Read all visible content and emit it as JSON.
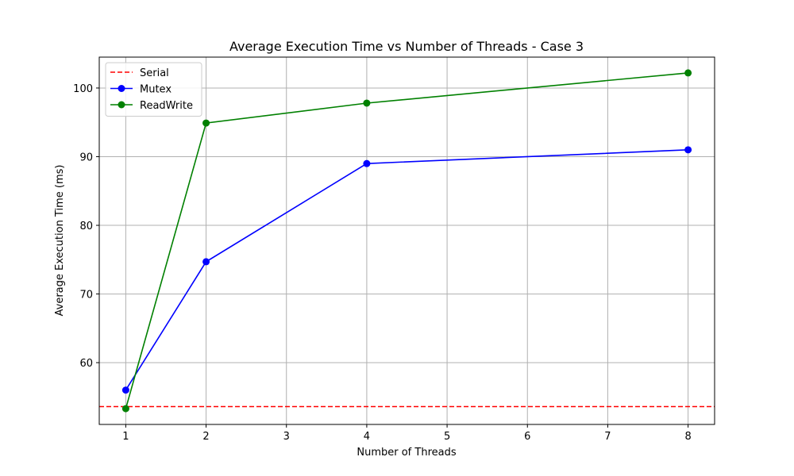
{
  "chart_data": {
    "type": "line",
    "title": "Average Execution Time vs Number of Threads - Case 3",
    "xlabel": "Number of Threads",
    "ylabel": "Average Execution Time (ms)",
    "xlim": [
      0.67,
      8.33
    ],
    "ylim": [
      51,
      104.5
    ],
    "xticks": [
      1,
      2,
      3,
      4,
      5,
      6,
      7,
      8
    ],
    "yticks": [
      60,
      70,
      80,
      90,
      100
    ],
    "grid": true,
    "legend_position": "top-left",
    "reference_lines": [
      {
        "name": "Serial",
        "y": 53.6,
        "color": "#ff0000",
        "style": "dashed"
      }
    ],
    "series": [
      {
        "name": "Mutex",
        "color": "#0000ff",
        "marker": "circle",
        "x": [
          1,
          2,
          4,
          8
        ],
        "y": [
          56.0,
          74.7,
          89.0,
          91.0
        ]
      },
      {
        "name": "ReadWrite",
        "color": "#008000",
        "marker": "circle",
        "x": [
          1,
          2,
          4,
          8
        ],
        "y": [
          53.3,
          94.9,
          97.8,
          102.2
        ]
      }
    ]
  }
}
